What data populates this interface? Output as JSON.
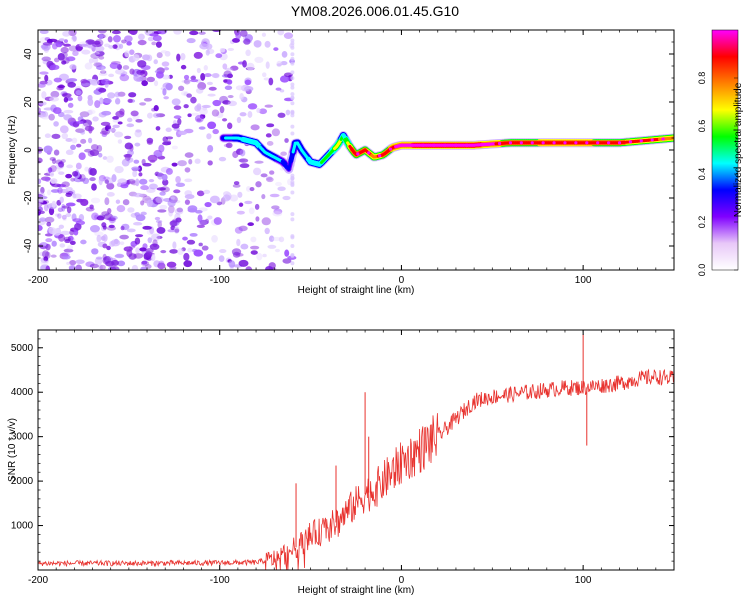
{
  "title": "YM08.2026.006.01.45.G10",
  "chart_data": [
    {
      "type": "heatmap",
      "panel": "top",
      "xlabel": "Height of straight line (km)",
      "ylabel": "Frequency (Hz)",
      "xlim": [
        -200,
        150
      ],
      "ylim": [
        -50,
        50
      ],
      "xticks": [
        -200,
        -100,
        0,
        100
      ],
      "yticks": [
        -40,
        -20,
        0,
        20,
        40
      ],
      "colorbar": {
        "label": "Normalized spectral amplitude",
        "range": [
          0.0,
          1.0
        ],
        "ticks": [
          "0.0",
          "0.2",
          "0.4",
          "0.6",
          "0.8"
        ],
        "colors": [
          "#ffffff",
          "#e8c8f8",
          "#8000ff",
          "#0000ff",
          "#00ffff",
          "#00ff00",
          "#ffff00",
          "#ff8000",
          "#ff0000",
          "#ff00ff"
        ]
      },
      "noise_region_x": [
        -200,
        -60
      ],
      "ridge": {
        "x": [
          -98,
          -90,
          -85,
          -80,
          -75,
          -70,
          -65,
          -62,
          -58,
          -55,
          -50,
          -45,
          -40,
          -35,
          -32,
          -28,
          -25,
          -20,
          -15,
          -10,
          -5,
          0,
          20,
          40,
          60,
          80,
          100,
          120,
          150
        ],
        "y": [
          5,
          5,
          4,
          3,
          -1,
          -3,
          -5,
          -8,
          4,
          0,
          -5,
          -6,
          -2,
          2,
          6,
          1,
          -2,
          0,
          -3,
          -2,
          1,
          2,
          2,
          2,
          3,
          3,
          3,
          3,
          5
        ],
        "amplitude": [
          0.35,
          0.4,
          0.45,
          0.45,
          0.4,
          0.4,
          0.35,
          0.3,
          0.4,
          0.4,
          0.45,
          0.45,
          0.5,
          0.6,
          0.45,
          0.8,
          0.8,
          0.8,
          0.75,
          0.8,
          0.85,
          0.9,
          0.95,
          0.95,
          0.8,
          0.85,
          0.85,
          0.8,
          0.75
        ]
      }
    },
    {
      "type": "line",
      "panel": "bottom",
      "xlabel": "Height of straight line (km)",
      "ylabel": "SNR (10 * v/v)",
      "xlim": [
        -200,
        150
      ],
      "ylim": [
        0,
        5400
      ],
      "xticks": [
        -200,
        -100,
        0,
        100
      ],
      "yticks": [
        1000,
        2000,
        3000,
        4000,
        5000
      ],
      "color": "#e8322e",
      "series": {
        "x": [
          -200,
          -150,
          -100,
          -80,
          -70,
          -60,
          -55,
          -50,
          -45,
          -40,
          -35,
          -30,
          -25,
          -20,
          -15,
          -10,
          -5,
          0,
          10,
          20,
          30,
          40,
          50,
          60,
          70,
          80,
          90,
          100,
          110,
          120,
          130,
          140,
          150
        ],
        "y": [
          150,
          150,
          160,
          170,
          250,
          450,
          600,
          800,
          850,
          950,
          1100,
          1300,
          1500,
          1700,
          1800,
          2000,
          2200,
          2400,
          2700,
          3000,
          3400,
          3800,
          3900,
          3950,
          4000,
          4050,
          4100,
          4100,
          4150,
          4200,
          4300,
          4350,
          4300
        ]
      },
      "spikes": [
        {
          "x": -58,
          "y": 1950
        },
        {
          "x": -36,
          "y": 2350
        },
        {
          "x": -20,
          "y": 4000
        },
        {
          "x": -18,
          "y": 3000
        },
        {
          "x": 100,
          "y": 5300
        },
        {
          "x": 102,
          "y": 2800
        }
      ]
    }
  ]
}
